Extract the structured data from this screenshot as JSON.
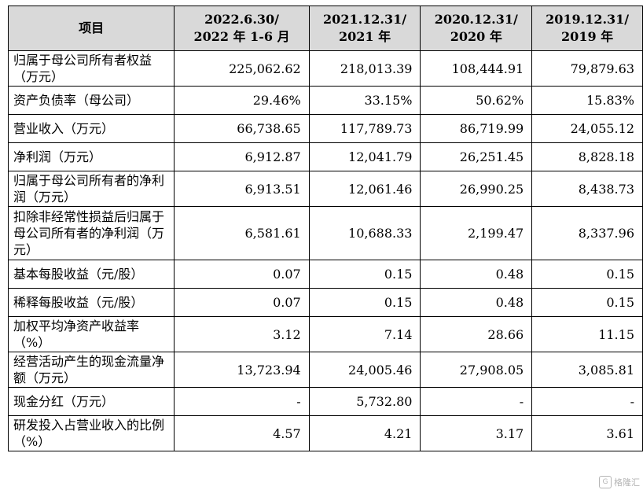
{
  "table": {
    "headers": [
      "项目",
      "2022.6.30/\n2022 年 1-6 月",
      "2021.12.31/\n2021 年",
      "2020.12.31/\n2020 年",
      "2019.12.31/\n2019 年"
    ],
    "rows": [
      {
        "label": "归属于母公司所有者权益（万元）",
        "values": [
          "225,062.62",
          "218,013.39",
          "108,444.91",
          "79,879.63"
        ]
      },
      {
        "label": "资产负债率（母公司）",
        "values": [
          "29.46%",
          "33.15%",
          "50.62%",
          "15.83%"
        ]
      },
      {
        "label": "营业收入（万元）",
        "values": [
          "66,738.65",
          "117,789.73",
          "86,719.99",
          "24,055.12"
        ]
      },
      {
        "label": "净利润（万元）",
        "values": [
          "6,912.87",
          "12,041.79",
          "26,251.45",
          "8,828.18"
        ]
      },
      {
        "label": "归属于母公司所有者的净利润（万元）",
        "values": [
          "6,913.51",
          "12,061.46",
          "26,990.25",
          "8,438.73"
        ]
      },
      {
        "label": "扣除非经常性损益后归属于母公司所有者的净利润（万元）",
        "values": [
          "6,581.61",
          "10,688.33",
          "2,199.47",
          "8,337.96"
        ]
      },
      {
        "label": "基本每股收益（元/股）",
        "values": [
          "0.07",
          "0.15",
          "0.48",
          "0.15"
        ]
      },
      {
        "label": "稀释每股收益（元/股）",
        "values": [
          "0.07",
          "0.15",
          "0.48",
          "0.15"
        ]
      },
      {
        "label": "加权平均净资产收益率（%）",
        "values": [
          "3.12",
          "7.14",
          "28.66",
          "11.15"
        ]
      },
      {
        "label": "经营活动产生的现金流量净额（万元）",
        "values": [
          "13,723.94",
          "24,005.46",
          "27,908.05",
          "3,085.81"
        ]
      },
      {
        "label": "现金分红（万元）",
        "values": [
          "-",
          "5,732.80",
          "-",
          "-"
        ]
      },
      {
        "label": "研发投入占营业收入的比例（%）",
        "values": [
          "4.57",
          "4.21",
          "3.17",
          "3.61"
        ]
      }
    ]
  },
  "watermark": {
    "logo": "G",
    "text": "格隆汇"
  }
}
